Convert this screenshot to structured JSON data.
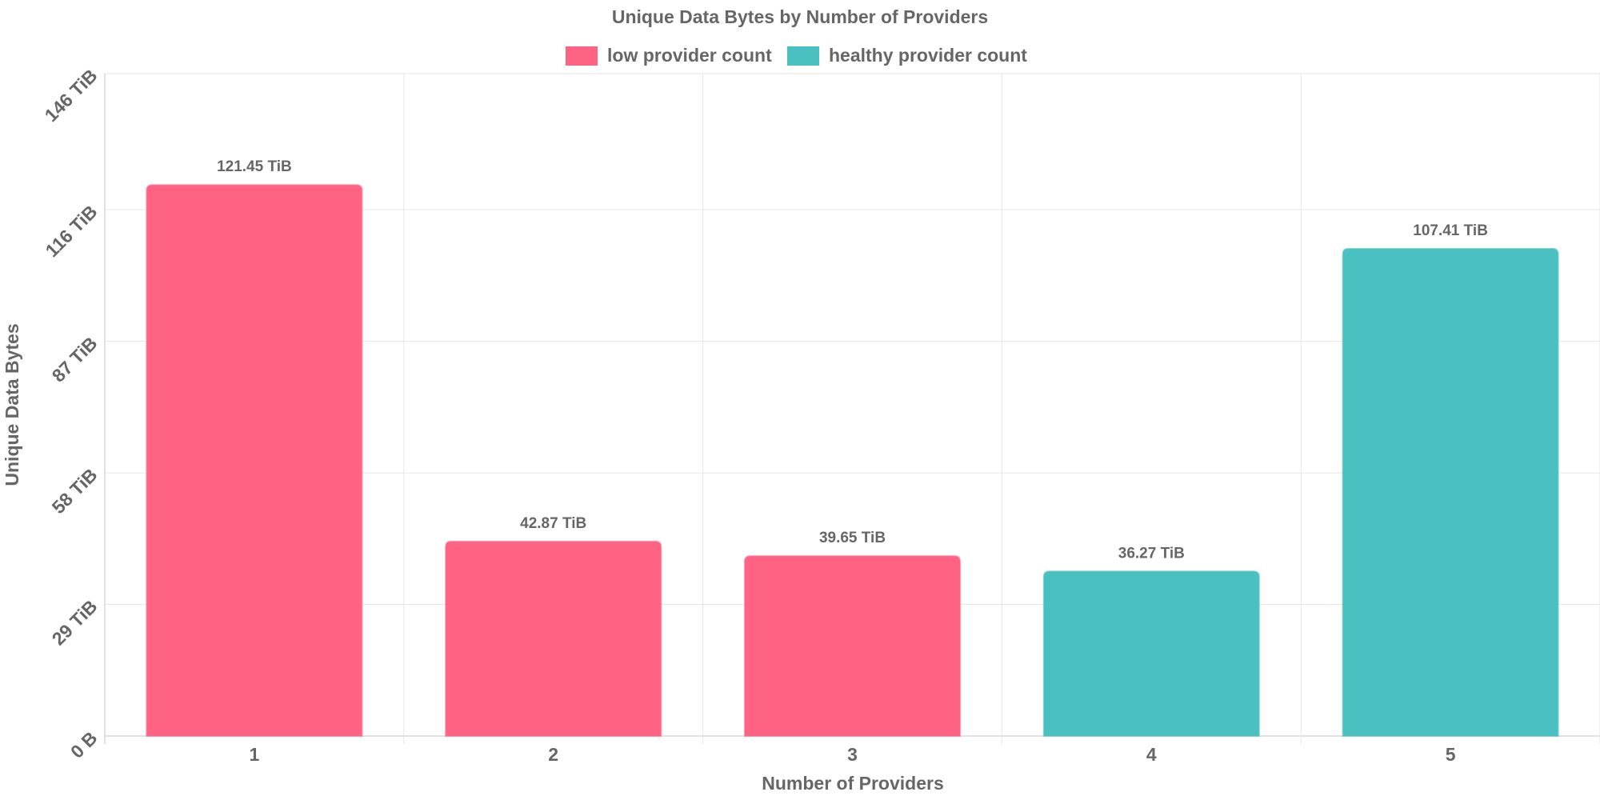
{
  "chart_data": {
    "type": "bar",
    "title": "Unique Data Bytes by Number of Providers",
    "xlabel": "Number of Providers",
    "ylabel": "Unique Data Bytes",
    "categories": [
      "1",
      "2",
      "3",
      "4",
      "5"
    ],
    "values": [
      121.45,
      42.87,
      39.65,
      36.27,
      107.41
    ],
    "unit": "TiB",
    "value_labels": [
      "121.45 TiB",
      "42.87 TiB",
      "39.65 TiB",
      "36.27 TiB",
      "107.41 TiB"
    ],
    "bar_series": [
      "low provider count",
      "low provider count",
      "low provider count",
      "healthy provider count",
      "healthy provider count"
    ],
    "series": [
      {
        "name": "low provider count",
        "color": "#ff6384"
      },
      {
        "name": "healthy provider count",
        "color": "#4bc0c0"
      }
    ],
    "ylim": [
      0,
      146
    ],
    "yticks": [
      0,
      29,
      58,
      87,
      116,
      146
    ],
    "ytick_labels": [
      "0 B",
      "29 TiB",
      "58 TiB",
      "87 TiB",
      "116 TiB",
      "146 TiB"
    ],
    "legend_position": "top",
    "grid": true
  }
}
